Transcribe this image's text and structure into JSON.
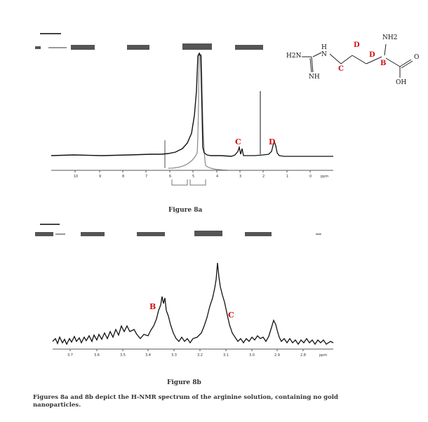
{
  "figure_8a": {
    "caption": "Figure 8a",
    "peak_labels": [
      "C",
      "D"
    ],
    "ppm_unit": "ppm",
    "axis_ticks": [
      "10",
      "9",
      "8",
      "7",
      "6",
      "5",
      "4",
      "3",
      "2",
      "1",
      "0"
    ]
  },
  "figure_8b": {
    "caption": "Figure 8b",
    "peak_labels": [
      "B",
      "C"
    ],
    "ppm_unit": "ppm",
    "axis_ticks": [
      "3.7",
      "3.6",
      "3.5",
      "3.4",
      "3.3",
      "3.2",
      "3.1",
      "3.0",
      "2.9",
      "2.8"
    ]
  },
  "molecule": {
    "groups": [
      "NH2",
      "H",
      "N",
      "H2N",
      "NH",
      "O",
      "OH"
    ],
    "position_labels": [
      "D",
      "D",
      "C",
      "B"
    ]
  },
  "caption_text": "Figures 8a and 8b depict the H-NMR spectrum of the arginine solution, containing no gold nanoparticles.",
  "colors": {
    "peak_label": "#d01010",
    "spectrum": "#111111",
    "integral": "#888888"
  }
}
